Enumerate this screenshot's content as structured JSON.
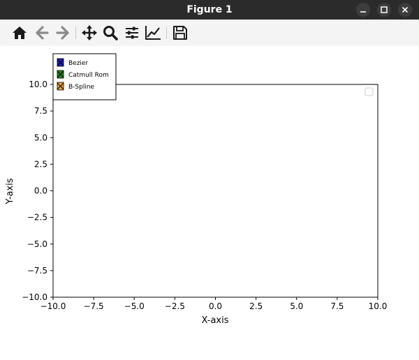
{
  "window": {
    "title": "Figure 1",
    "buttons": [
      {
        "name": "minimize",
        "icon": "minimize-icon"
      },
      {
        "name": "maximize",
        "icon": "maximize-icon"
      },
      {
        "name": "close",
        "icon": "close-icon"
      }
    ]
  },
  "toolbar": {
    "tools": [
      {
        "name": "home",
        "icon": "home-icon"
      },
      {
        "name": "back",
        "icon": "back-arrow-icon"
      },
      {
        "name": "forward",
        "icon": "forward-arrow-icon"
      },
      {
        "name": "pan",
        "icon": "move-icon"
      },
      {
        "name": "zoom",
        "icon": "zoom-icon"
      },
      {
        "name": "configure-subplots",
        "icon": "sliders-icon"
      },
      {
        "name": "edit-axis",
        "icon": "line-chart-icon"
      },
      {
        "name": "save",
        "icon": "save-icon"
      }
    ]
  },
  "chart_data": {
    "type": "line",
    "title": "",
    "xlabel": "X-axis",
    "ylabel": "Y-axis",
    "xlim": [
      -10,
      10
    ],
    "ylim": [
      -10,
      10
    ],
    "xticks": [
      -10.0,
      -7.5,
      -5.0,
      -2.5,
      0.0,
      2.5,
      5.0,
      7.5,
      10.0
    ],
    "yticks": [
      -10.0,
      -7.5,
      -5.0,
      -2.5,
      0.0,
      2.5,
      5.0,
      7.5,
      10.0
    ],
    "xtick_labels": [
      "−10.0",
      "−7.5",
      "−5.0",
      "−2.5",
      "0.0",
      "2.5",
      "5.0",
      "7.5",
      "10.0"
    ],
    "ytick_labels": [
      "−10.0",
      "−7.5",
      "−5.0",
      "−2.5",
      "0.0",
      "2.5",
      "5.0",
      "7.5",
      "10.0"
    ],
    "grid": false,
    "legend_position": "top-left",
    "series": [
      {
        "name": "Bezier",
        "color": "#1f1fcc",
        "values": []
      },
      {
        "name": "Catmull Rom",
        "color": "#1f8a1f",
        "values": []
      },
      {
        "name": "B-Spline",
        "color": "#f0a030",
        "values": []
      }
    ],
    "empty_legend_position": "top-right"
  }
}
